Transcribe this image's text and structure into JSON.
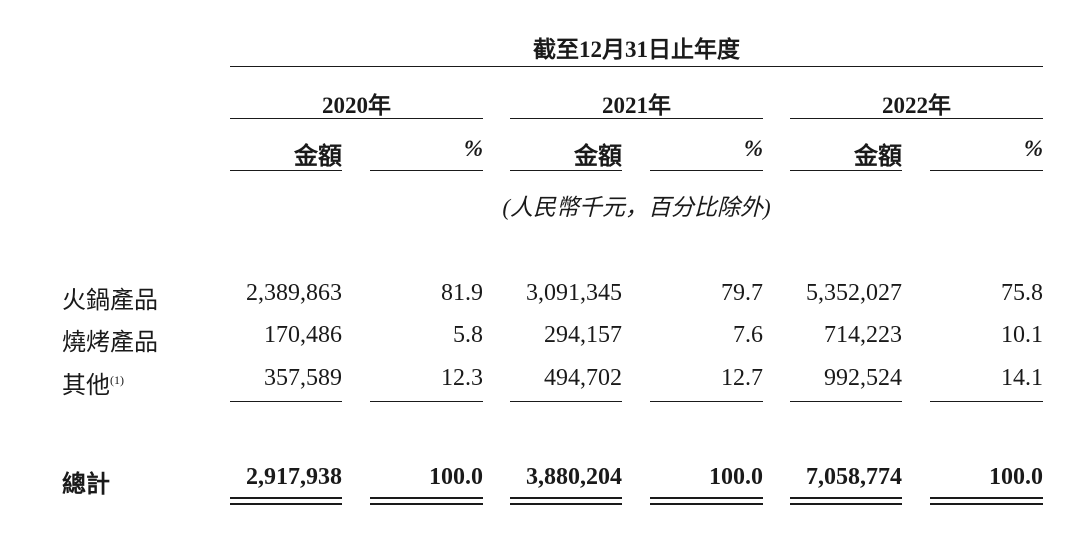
{
  "header": {
    "period": "截至12月31日止年度",
    "years": [
      "2020年",
      "2021年",
      "2022年"
    ],
    "amount_label": "金額",
    "pct_label": "%"
  },
  "unit_note": "(人民幣千元，百分比除外)",
  "rows": [
    {
      "label": "火鍋產品",
      "note": "",
      "values": [
        {
          "amount": "2,389,863",
          "pct": "81.9"
        },
        {
          "amount": "3,091,345",
          "pct": "79.7"
        },
        {
          "amount": "5,352,027",
          "pct": "75.8"
        }
      ]
    },
    {
      "label": "燒烤產品",
      "note": "",
      "values": [
        {
          "amount": "170,486",
          "pct": "5.8"
        },
        {
          "amount": "294,157",
          "pct": "7.6"
        },
        {
          "amount": "714,223",
          "pct": "10.1"
        }
      ]
    },
    {
      "label": "其他",
      "note": "(1)",
      "values": [
        {
          "amount": "357,589",
          "pct": "12.3"
        },
        {
          "amount": "494,702",
          "pct": "12.7"
        },
        {
          "amount": "992,524",
          "pct": "14.1"
        }
      ]
    }
  ],
  "total": {
    "label": "總計",
    "values": [
      {
        "amount": "2,917,938",
        "pct": "100.0"
      },
      {
        "amount": "3,880,204",
        "pct": "100.0"
      },
      {
        "amount": "7,058,774",
        "pct": "100.0"
      }
    ]
  }
}
